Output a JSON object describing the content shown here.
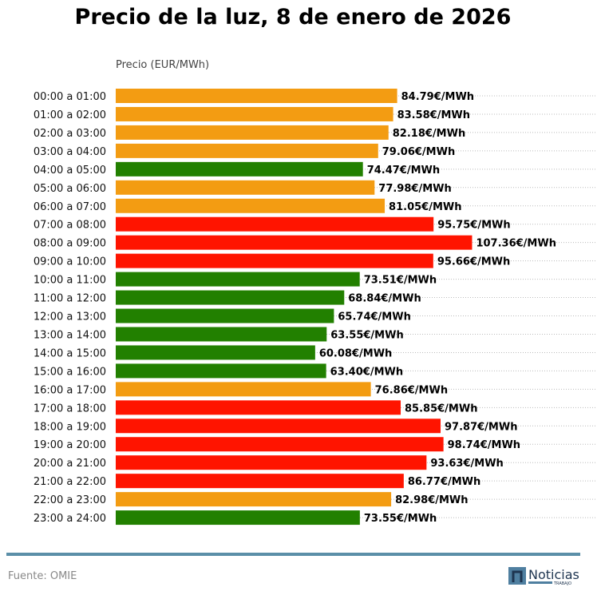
{
  "title": "Precio de la luz, 8 de enero de 2026",
  "source": "Fuente: OMIE",
  "logo_text": "Noticias TRABAJO",
  "colors": {
    "high": "#FF1400",
    "mid": "#F39C12",
    "low": "#228000",
    "rule": "#5b8fa8"
  },
  "chart_data": {
    "type": "bar",
    "orientation": "horizontal",
    "title": "Precio de la luz, 8 de enero de 2026",
    "xlabel": "Precio (EUR/MWh)",
    "xlim": [
      0,
      145
    ],
    "grid": "dotted horizontal",
    "value_suffix": "€/MWh",
    "categories": [
      "00:00 a 01:00",
      "01:00 a 02:00",
      "02:00 a 03:00",
      "03:00 a 04:00",
      "04:00 a 05:00",
      "05:00 a 06:00",
      "06:00 a 07:00",
      "07:00 a 08:00",
      "08:00 a 09:00",
      "09:00 a 10:00",
      "10:00 a 11:00",
      "11:00 a 12:00",
      "12:00 a 13:00",
      "13:00 a 14:00",
      "14:00 a 15:00",
      "15:00 a 16:00",
      "16:00 a 17:00",
      "17:00 a 18:00",
      "18:00 a 19:00",
      "19:00 a 20:00",
      "20:00 a 21:00",
      "21:00 a 22:00",
      "22:00 a 23:00",
      "23:00 a 24:00"
    ],
    "values": [
      84.79,
      83.58,
      82.18,
      79.06,
      74.47,
      77.98,
      81.05,
      95.75,
      107.36,
      95.66,
      73.51,
      68.84,
      65.74,
      63.55,
      60.08,
      63.4,
      76.86,
      85.85,
      97.87,
      98.74,
      93.63,
      86.77,
      82.98,
      73.55
    ],
    "levels": [
      "mid",
      "mid",
      "mid",
      "mid",
      "low",
      "mid",
      "mid",
      "high",
      "high",
      "high",
      "low",
      "low",
      "low",
      "low",
      "low",
      "low",
      "mid",
      "high",
      "high",
      "high",
      "high",
      "high",
      "mid",
      "low"
    ]
  }
}
